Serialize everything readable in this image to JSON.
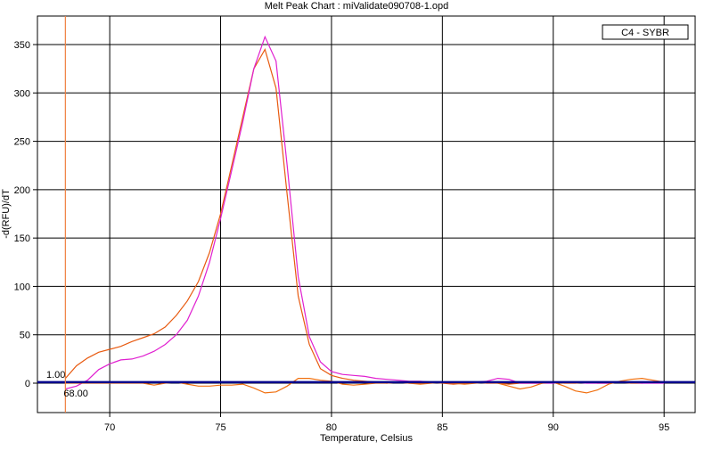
{
  "chart_data": {
    "type": "line",
    "title": "Melt Peak Chart : miValidate090708-1.opd",
    "x_label": "Temperature, Celsius",
    "y_label": "-d(RFU)/dT",
    "legend": "C4 - SYBR",
    "legend_position": "upper right",
    "grid": true,
    "xlim": [
      66.74,
      96.4
    ],
    "ylim": [
      -30.4,
      379.5
    ],
    "xticks": [
      70,
      75,
      80,
      85,
      90,
      95
    ],
    "yticks": [
      0,
      50,
      100,
      150,
      200,
      250,
      300,
      350
    ],
    "threshold": {
      "value": 1,
      "label": "1.00",
      "color": "#00008b"
    },
    "marker_x": {
      "value": 68,
      "label": "68.00",
      "color": "#f08040"
    },
    "x": [
      68,
      68.5,
      69,
      69.5,
      70,
      70.5,
      71,
      71.5,
      72,
      72.5,
      73,
      73.5,
      74,
      74.5,
      75,
      75.5,
      76,
      76.5,
      77,
      77.5,
      78,
      78.5,
      79,
      79.5,
      80,
      80.5,
      81,
      81.5,
      82,
      82.5,
      83,
      83.5,
      84,
      84.5,
      85,
      85.5,
      86,
      86.5,
      87,
      87.5,
      88,
      88.5,
      89,
      89.5,
      90,
      90.5,
      91,
      91.5,
      92,
      92.5,
      93,
      93.5,
      94,
      94.5,
      95
    ],
    "series": [
      {
        "color": "#e85a10",
        "values": [
          5,
          18,
          26,
          32,
          35,
          38,
          43,
          47,
          51,
          58,
          70,
          85,
          105,
          135,
          175,
          225,
          275,
          325,
          345,
          305,
          195,
          90,
          40,
          15,
          8,
          5,
          3,
          2,
          1,
          0,
          1,
          0,
          0,
          1,
          0,
          -1,
          0,
          1,
          0,
          0,
          -1,
          0,
          0,
          0,
          1,
          0,
          0,
          1,
          0,
          0,
          1,
          0,
          0,
          1,
          1
        ]
      },
      {
        "color": "#e020d0",
        "values": [
          -6,
          -3,
          3,
          14,
          20,
          24,
          25,
          28,
          33,
          40,
          50,
          65,
          90,
          125,
          170,
          220,
          270,
          325,
          358,
          333,
          225,
          110,
          48,
          22,
          12,
          9,
          8,
          7,
          5,
          4,
          3,
          2,
          2,
          1,
          1,
          0,
          1,
          1,
          2,
          5,
          4,
          0,
          0,
          0,
          0,
          1,
          1,
          0,
          0,
          0,
          1,
          1,
          0,
          0,
          0
        ]
      },
      {
        "color": "#f07010",
        "values": [
          0,
          0,
          0,
          0,
          0,
          0,
          0,
          0,
          -2,
          0,
          1,
          -1,
          -3,
          -3,
          -2,
          -2,
          -1,
          -5,
          -10,
          -9,
          -3,
          5,
          5,
          3,
          2,
          -1,
          -2,
          -1,
          0,
          0,
          1,
          0,
          -1,
          0,
          1,
          0,
          -1,
          0,
          1,
          0,
          -3,
          -6,
          -4,
          0,
          1,
          -3,
          -8,
          -10,
          -7,
          -1,
          2,
          4,
          5,
          3,
          1
        ]
      }
    ]
  }
}
